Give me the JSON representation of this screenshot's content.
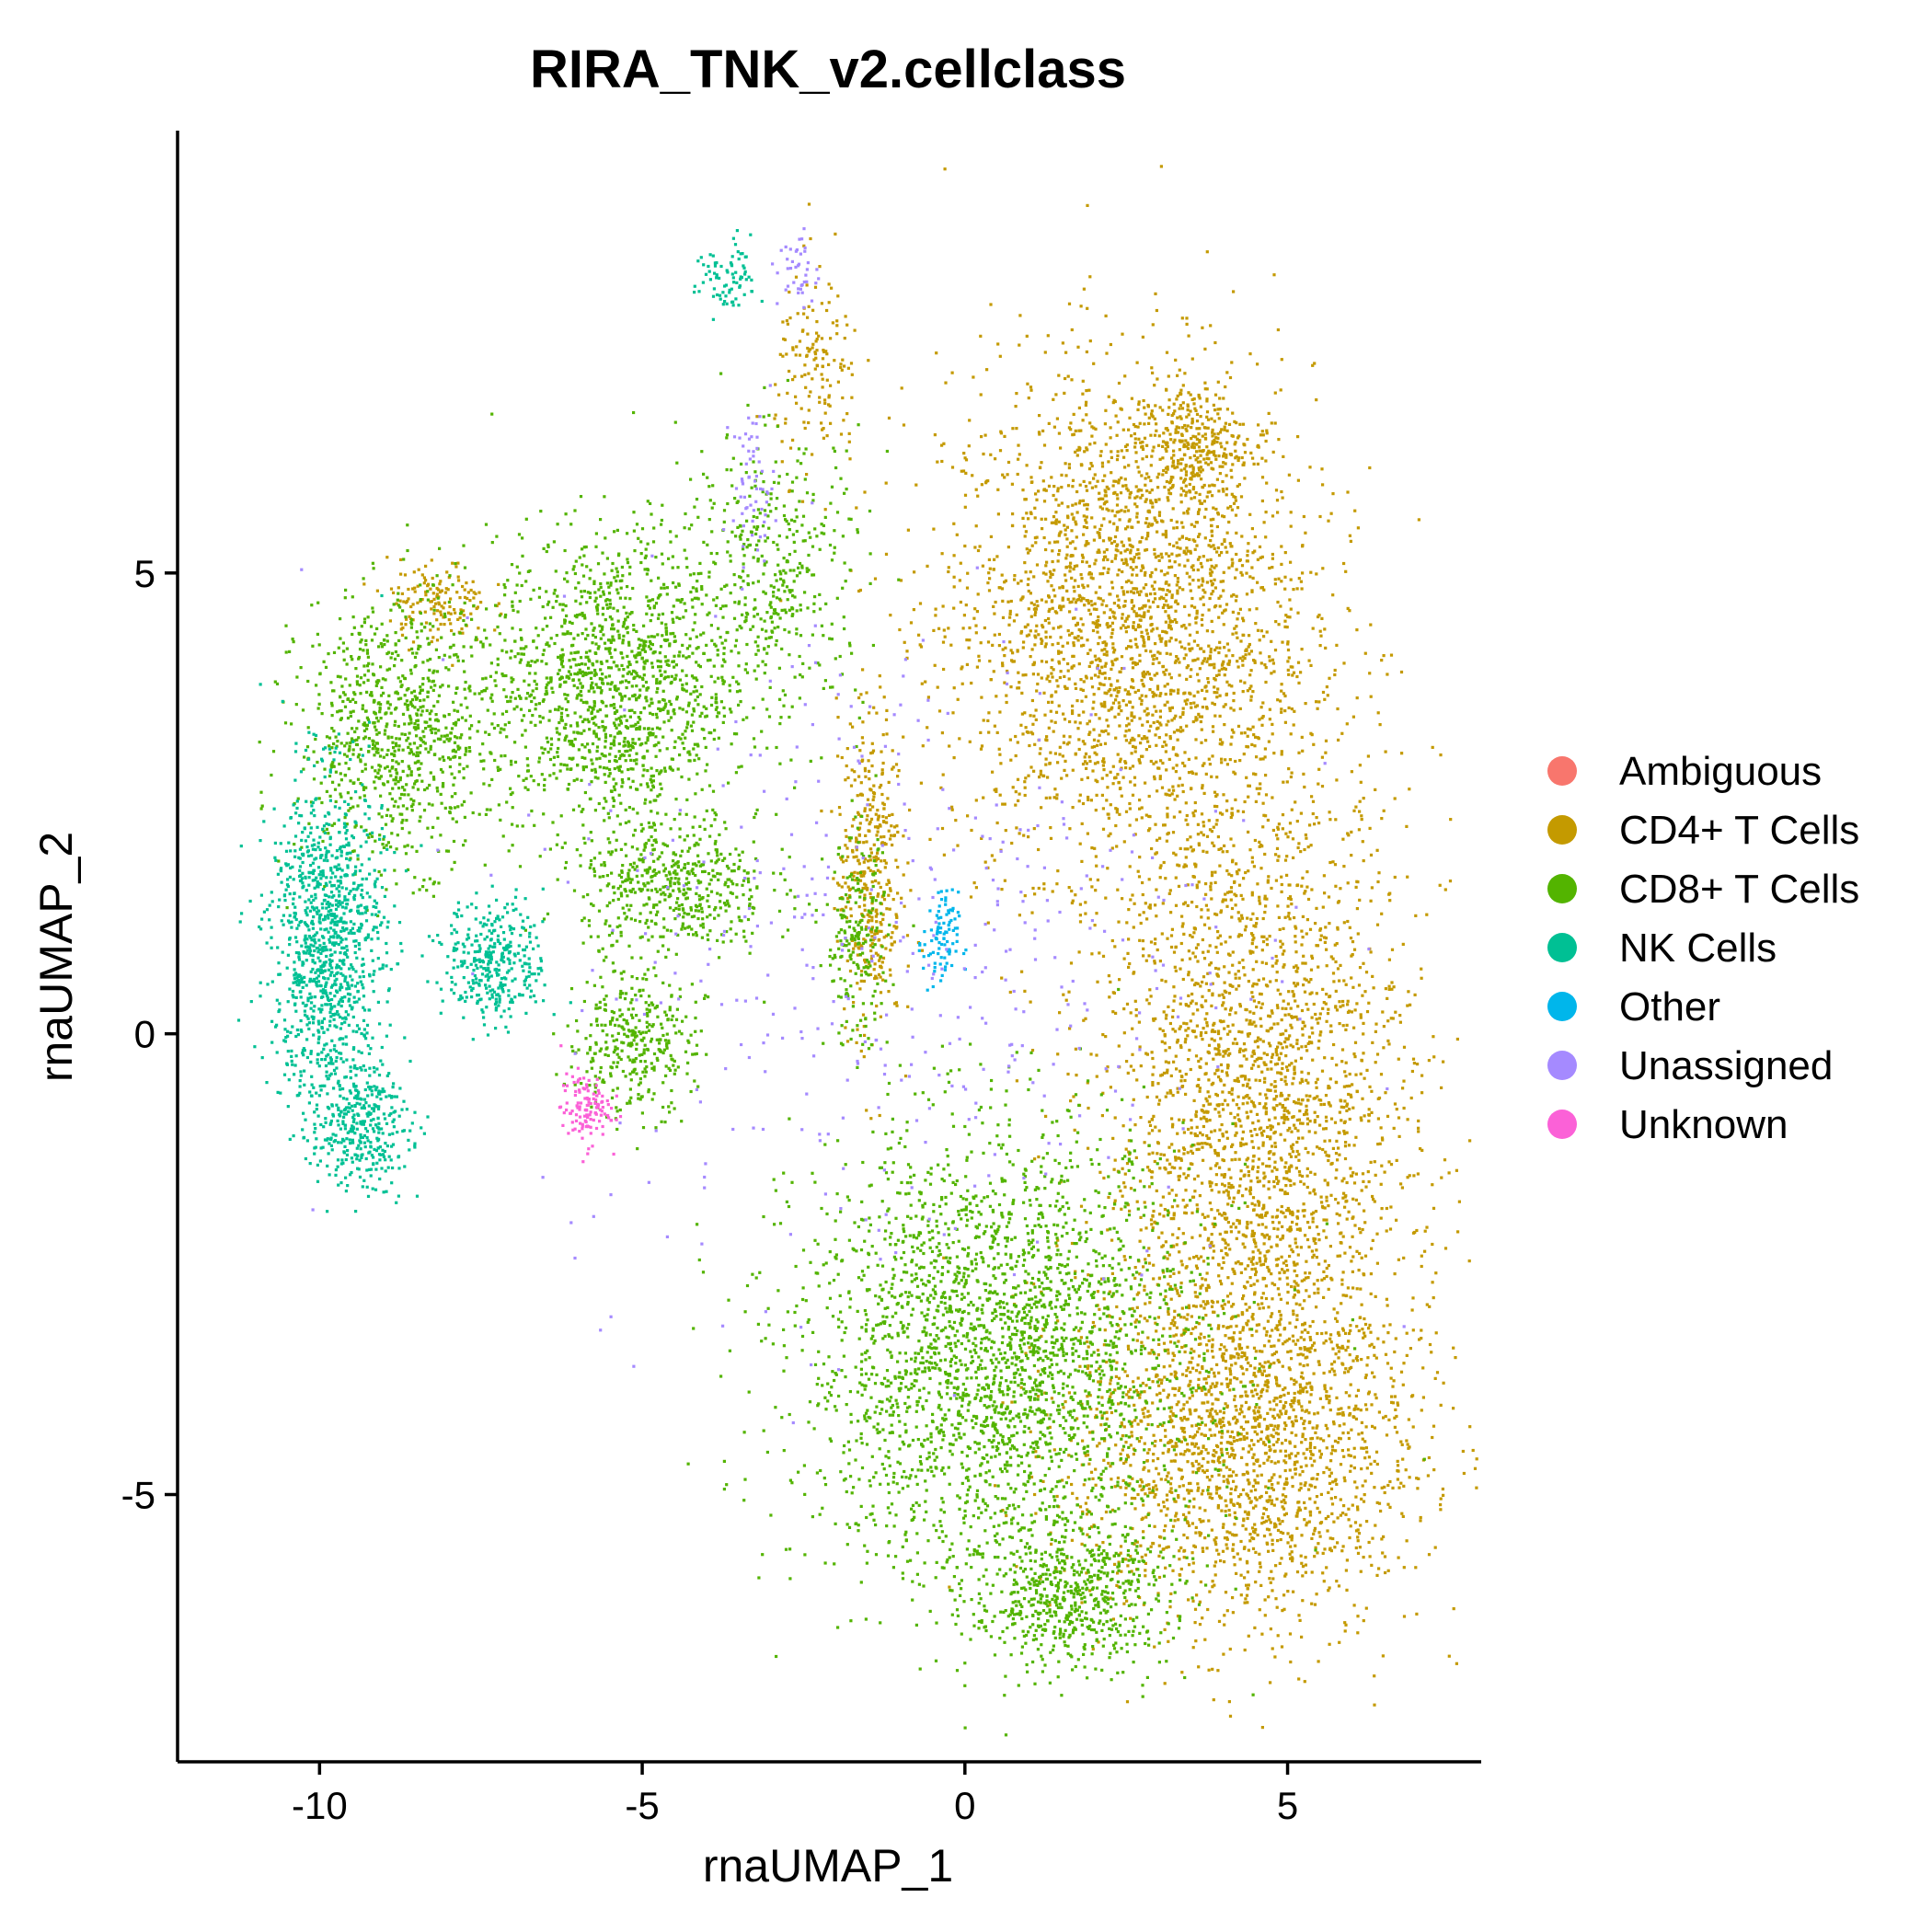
{
  "chart_data": {
    "type": "scatter",
    "title": "RIRA_TNK_v2.cellclass",
    "xlabel": "rnaUMAP_1",
    "ylabel": "rnaUMAP_2",
    "xlim": [
      -12.2,
      8
    ],
    "ylim": [
      -7.9,
      9.8
    ],
    "xticks": [
      -10,
      -5,
      0,
      5
    ],
    "yticks": [
      -5,
      0,
      5
    ],
    "grid": false,
    "legend_position": "right",
    "series": [
      {
        "name": "Ambiguous",
        "color": "#F8766D",
        "clusters": []
      },
      {
        "name": "CD4+ T Cells",
        "color": "#C49A00",
        "clusters": [
          {
            "cx": 2.5,
            "cy": 4.5,
            "rx": 2.6,
            "ry": 2.5,
            "n": 2600
          },
          {
            "cx": 4.5,
            "cy": -1.0,
            "rx": 2.2,
            "ry": 3.5,
            "n": 2800
          },
          {
            "cx": 4.3,
            "cy": -4.5,
            "rx": 2.5,
            "ry": 1.8,
            "n": 1700
          },
          {
            "cx": 3.5,
            "cy": 6.4,
            "rx": 0.7,
            "ry": 0.6,
            "n": 300
          },
          {
            "cx": -1.5,
            "cy": 1.8,
            "rx": 0.45,
            "ry": 1.6,
            "n": 400
          },
          {
            "cx": -8.2,
            "cy": 4.7,
            "rx": 0.7,
            "ry": 0.4,
            "n": 150
          },
          {
            "cx": -2.3,
            "cy": 7.2,
            "rx": 0.6,
            "ry": 1.0,
            "n": 150
          }
        ]
      },
      {
        "name": "CD8+ T Cells",
        "color": "#53B400",
        "clusters": [
          {
            "cx": 0.5,
            "cy": -3.5,
            "rx": 2.8,
            "ry": 2.2,
            "n": 2800
          },
          {
            "cx": 1.6,
            "cy": -6.1,
            "rx": 1.4,
            "ry": 0.7,
            "n": 600
          },
          {
            "cx": -5.5,
            "cy": 3.8,
            "rx": 1.7,
            "ry": 1.5,
            "n": 1400
          },
          {
            "cx": -4.5,
            "cy": 1.6,
            "rx": 1.3,
            "ry": 0.7,
            "n": 500
          },
          {
            "cx": -8.8,
            "cy": 3.3,
            "rx": 1.4,
            "ry": 1.3,
            "n": 900
          },
          {
            "cx": -5.2,
            "cy": -0.1,
            "rx": 0.9,
            "ry": 0.7,
            "n": 350
          },
          {
            "cx": -3.0,
            "cy": 5.0,
            "rx": 1.3,
            "ry": 1.4,
            "n": 450
          },
          {
            "cx": -1.7,
            "cy": 1.0,
            "rx": 0.45,
            "ry": 1.0,
            "n": 200
          }
        ]
      },
      {
        "name": "NK Cells",
        "color": "#00C094",
        "clusters": [
          {
            "cx": -9.9,
            "cy": 1.0,
            "rx": 0.8,
            "ry": 1.6,
            "n": 1100
          },
          {
            "cx": -9.4,
            "cy": -1.0,
            "rx": 0.7,
            "ry": 0.6,
            "n": 350
          },
          {
            "cx": -7.3,
            "cy": 0.8,
            "rx": 0.7,
            "ry": 0.6,
            "n": 350
          },
          {
            "cx": -3.7,
            "cy": 8.2,
            "rx": 0.45,
            "ry": 0.4,
            "n": 80
          }
        ]
      },
      {
        "name": "Other",
        "color": "#00B6EB",
        "clusters": [
          {
            "cx": -0.4,
            "cy": 1.0,
            "rx": 0.25,
            "ry": 0.5,
            "n": 90
          }
        ]
      },
      {
        "name": "Unassigned",
        "color": "#A58AFF",
        "clusters": [
          {
            "cx": -1.0,
            "cy": 1.0,
            "rx": 5.0,
            "ry": 3.5,
            "n": 400
          },
          {
            "cx": -3.3,
            "cy": 6.0,
            "rx": 0.3,
            "ry": 0.7,
            "n": 60
          },
          {
            "cx": -2.6,
            "cy": 8.3,
            "rx": 0.3,
            "ry": 0.4,
            "n": 40
          }
        ]
      },
      {
        "name": "Unknown",
        "color": "#FB61D7",
        "clusters": [
          {
            "cx": -5.9,
            "cy": -0.8,
            "rx": 0.35,
            "ry": 0.35,
            "n": 120
          }
        ]
      }
    ]
  }
}
